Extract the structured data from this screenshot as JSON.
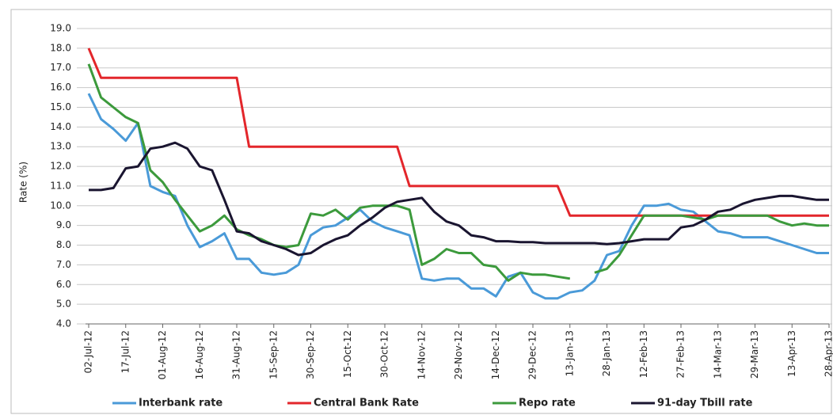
{
  "chart_data": {
    "type": "line",
    "y_label": "Rate (%)",
    "categories": [
      "02-Jul-12",
      null,
      null,
      "17-Jul-12",
      null,
      null,
      "01-Aug-12",
      null,
      null,
      "16-Aug-12",
      null,
      null,
      "31-Aug-12",
      null,
      null,
      "15-Sep-12",
      null,
      null,
      "30-Sep-12",
      null,
      null,
      "15-Oct-12",
      null,
      null,
      "30-Oct-12",
      null,
      null,
      "14-Nov-12",
      null,
      null,
      "29-Nov-12",
      null,
      null,
      "14-Dec-12",
      null,
      null,
      "29-Dec-12",
      null,
      null,
      "13-Jan-13",
      null,
      null,
      "28-Jan-13",
      null,
      null,
      "12-Feb-13",
      null,
      null,
      "27-Feb-13",
      null,
      null,
      "14-Mar-13",
      null,
      null,
      "29-Mar-13",
      null,
      null,
      "13-Apr-13",
      null,
      null,
      "28-Apr-13"
    ],
    "series": [
      {
        "name": "Interbank rate",
        "color": "#4a9ad8",
        "values": [
          15.7,
          14.4,
          13.9,
          13.3,
          14.2,
          11.0,
          10.7,
          10.5,
          9.0,
          7.9,
          8.2,
          8.6,
          7.3,
          7.3,
          6.6,
          6.5,
          6.6,
          7.0,
          8.5,
          8.9,
          9.0,
          9.4,
          9.8,
          9.2,
          8.9,
          8.7,
          8.5,
          6.3,
          6.2,
          6.3,
          6.3,
          5.8,
          5.8,
          5.4,
          6.4,
          6.6,
          5.6,
          5.3,
          5.3,
          5.6,
          5.7,
          6.2,
          7.5,
          7.7,
          9.0,
          10.0,
          10.0,
          10.1,
          9.8,
          9.7,
          9.2,
          8.7,
          8.6,
          8.4,
          8.4,
          8.4,
          8.2,
          8.0,
          7.8,
          7.6,
          7.6
        ]
      },
      {
        "name": "Central Bank Rate",
        "color": "#e3262b",
        "values": [
          18.0,
          16.5,
          16.5,
          16.5,
          16.5,
          16.5,
          16.5,
          16.5,
          16.5,
          16.5,
          16.5,
          16.5,
          16.5,
          13.0,
          13.0,
          13.0,
          13.0,
          13.0,
          13.0,
          13.0,
          13.0,
          13.0,
          13.0,
          13.0,
          13.0,
          13.0,
          11.0,
          11.0,
          11.0,
          11.0,
          11.0,
          11.0,
          11.0,
          11.0,
          11.0,
          11.0,
          11.0,
          11.0,
          11.0,
          9.5,
          9.5,
          9.5,
          9.5,
          9.5,
          9.5,
          9.5,
          9.5,
          9.5,
          9.5,
          9.5,
          9.5,
          9.5,
          9.5,
          9.5,
          9.5,
          9.5,
          9.5,
          9.5,
          9.5,
          9.5,
          9.5
        ]
      },
      {
        "name": "Repo rate",
        "color": "#3c9a3c",
        "values": [
          17.2,
          15.5,
          15.0,
          14.5,
          14.2,
          11.8,
          11.2,
          10.3,
          9.5,
          8.7,
          9.0,
          9.5,
          8.8,
          8.5,
          8.3,
          8.0,
          7.9,
          8.0,
          9.6,
          9.5,
          9.8,
          9.3,
          9.9,
          10.0,
          10.0,
          10.0,
          9.8,
          7.0,
          7.3,
          7.8,
          7.6,
          7.6,
          7.0,
          6.9,
          6.2,
          6.6,
          6.5,
          6.5,
          6.4,
          6.3,
          null,
          6.6,
          6.8,
          7.5,
          8.5,
          9.5,
          9.5,
          9.5,
          9.5,
          9.4,
          9.3,
          9.5,
          9.5,
          9.5,
          9.5,
          9.5,
          9.2,
          9.0,
          9.1,
          9.0,
          9.0
        ]
      },
      {
        "name": "91-day Tbill rate",
        "color": "#1a1530",
        "values": [
          10.8,
          10.8,
          10.9,
          11.9,
          12.0,
          12.9,
          13.0,
          13.2,
          12.9,
          12.0,
          11.8,
          10.3,
          8.7,
          8.6,
          8.2,
          8.0,
          7.8,
          7.5,
          7.6,
          8.0,
          8.3,
          8.5,
          9.0,
          9.4,
          9.9,
          10.2,
          10.3,
          10.4,
          9.7,
          9.2,
          9.0,
          8.5,
          8.4,
          8.2,
          8.2,
          8.15,
          8.15,
          8.1,
          8.1,
          8.1,
          8.1,
          8.1,
          8.05,
          8.1,
          8.2,
          8.3,
          8.3,
          8.3,
          8.9,
          9.0,
          9.3,
          9.7,
          9.8,
          10.1,
          10.3,
          10.4,
          10.5,
          10.5,
          10.4,
          10.3,
          10.3
        ]
      }
    ],
    "ylim": [
      4,
      19
    ],
    "yticks": [
      {
        "value": 4,
        "label": "4.0"
      },
      {
        "value": 5,
        "label": "5.0"
      },
      {
        "value": 6,
        "label": "6.0"
      },
      {
        "value": 7,
        "label": "7.0"
      },
      {
        "value": 8,
        "label": "8.0"
      },
      {
        "value": 9,
        "label": "9.0"
      },
      {
        "value": 10,
        "label": "10.0"
      },
      {
        "value": 11,
        "label": "11.0"
      },
      {
        "value": 12,
        "label": "12.0"
      },
      {
        "value": 13,
        "label": "13.0"
      },
      {
        "value": 14,
        "label": "14.0"
      },
      {
        "value": 15,
        "label": "15.0"
      },
      {
        "value": 16,
        "label": "16.0"
      },
      {
        "value": 17,
        "label": "17.0"
      },
      {
        "value": 18,
        "label": "18.0"
      },
      {
        "value": 19,
        "label": "19.0"
      }
    ],
    "grid": true,
    "legend": "bottom"
  }
}
